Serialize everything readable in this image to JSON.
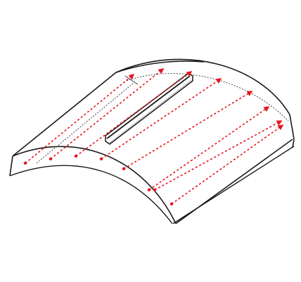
{
  "figure": {
    "colors": {
      "background": "#ffffff",
      "outline": "#1a1a1a",
      "guide": "#333333",
      "arrow": "#e8141c",
      "slot_fill": "#ffffff"
    },
    "arrow_count": 8,
    "elements": {
      "shell": "curved-sheet",
      "slot": "straight-slot",
      "flow": "red-dotted-arrows"
    }
  }
}
